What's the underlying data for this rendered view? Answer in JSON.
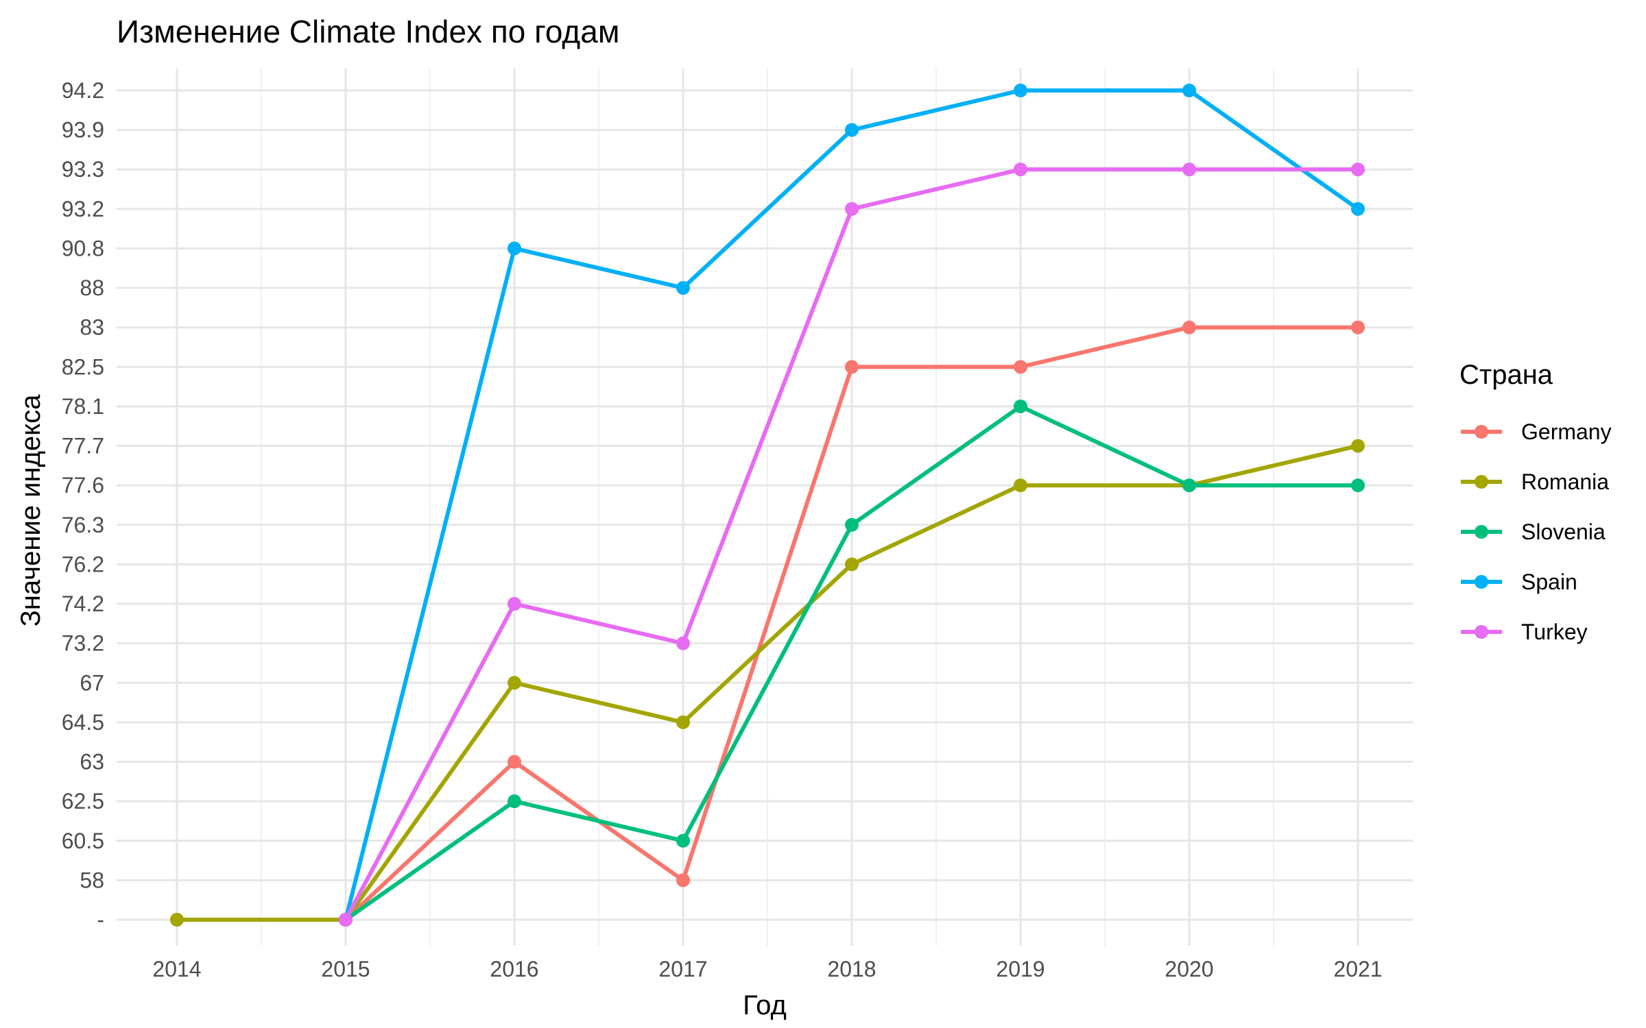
{
  "chart_data": {
    "type": "line",
    "title": "Изменение Climate Index по годам",
    "xlabel": "Год",
    "ylabel": "Значение индекса",
    "x": [
      "2014",
      "2015",
      "2016",
      "2017",
      "2018",
      "2019",
      "2020",
      "2021"
    ],
    "y_categories": [
      "-",
      "58",
      "60.5",
      "62.5",
      "63",
      "64.5",
      "67",
      "73.2",
      "74.2",
      "76.2",
      "76.3",
      "77.6",
      "77.7",
      "78.1",
      "82.5",
      "83",
      "88",
      "90.8",
      "93.2",
      "93.3",
      "93.9",
      "94.2"
    ],
    "y_axis_note": "y axis is categorical; values are positioned by their tick label",
    "legend_title": "Страна",
    "legend_position": "right",
    "grid": true,
    "series": [
      {
        "name": "Germany",
        "color": "#F8766D",
        "values": [
          null,
          "-",
          "63",
          "58",
          "82.5",
          "82.5",
          "83",
          "83"
        ]
      },
      {
        "name": "Romania",
        "color": "#A3A500",
        "values": [
          "-",
          "-",
          "67",
          "64.5",
          "76.2",
          "77.6",
          "77.6",
          "77.7"
        ]
      },
      {
        "name": "Slovenia",
        "color": "#00BF7D",
        "values": [
          null,
          "-",
          "62.5",
          "60.5",
          "76.3",
          "78.1",
          "77.6",
          "77.6"
        ]
      },
      {
        "name": "Spain",
        "color": "#00B0F6",
        "values": [
          null,
          "-",
          "90.8",
          "88",
          "93.9",
          "94.2",
          "94.2",
          "93.2"
        ]
      },
      {
        "name": "Turkey",
        "color": "#E76BF3",
        "values": [
          null,
          "-",
          "74.2",
          "73.2",
          "93.2",
          "93.3",
          "93.3",
          "93.3"
        ]
      }
    ]
  }
}
